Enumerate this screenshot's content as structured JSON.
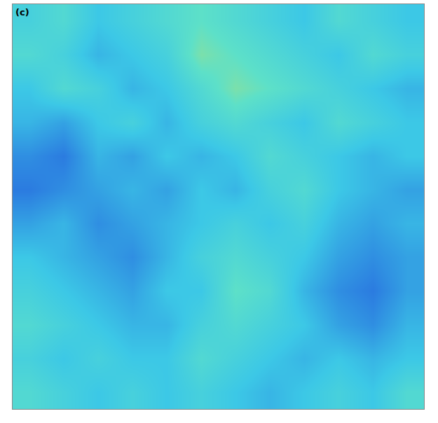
{
  "chart_data": {
    "type": "heatmap",
    "panel": "(c)",
    "tick_labels": false,
    "grid": false,
    "zlim": [
      0,
      1
    ],
    "cells": [
      [
        0.55,
        0.6,
        0.5,
        0.55,
        0.6,
        0.65,
        0.6,
        0.55,
        0.5,
        0.6,
        0.55,
        0.5
      ],
      [
        0.6,
        0.55,
        0.45,
        0.5,
        0.55,
        0.7,
        0.65,
        0.6,
        0.55,
        0.5,
        0.6,
        0.55
      ],
      [
        0.5,
        0.6,
        0.55,
        0.45,
        0.5,
        0.6,
        0.7,
        0.65,
        0.6,
        0.55,
        0.5,
        0.45
      ],
      [
        0.45,
        0.4,
        0.5,
        0.55,
        0.45,
        0.55,
        0.6,
        0.55,
        0.5,
        0.6,
        0.55,
        0.5
      ],
      [
        0.35,
        0.3,
        0.45,
        0.4,
        0.5,
        0.45,
        0.5,
        0.6,
        0.55,
        0.5,
        0.45,
        0.5
      ],
      [
        0.3,
        0.35,
        0.4,
        0.45,
        0.4,
        0.5,
        0.45,
        0.55,
        0.6,
        0.5,
        0.45,
        0.4
      ],
      [
        0.4,
        0.45,
        0.35,
        0.4,
        0.45,
        0.5,
        0.55,
        0.5,
        0.55,
        0.45,
        0.4,
        0.45
      ],
      [
        0.5,
        0.45,
        0.4,
        0.35,
        0.45,
        0.55,
        0.6,
        0.55,
        0.5,
        0.4,
        0.35,
        0.4
      ],
      [
        0.55,
        0.5,
        0.45,
        0.4,
        0.5,
        0.5,
        0.65,
        0.6,
        0.45,
        0.35,
        0.3,
        0.4
      ],
      [
        0.6,
        0.55,
        0.5,
        0.45,
        0.45,
        0.55,
        0.6,
        0.55,
        0.5,
        0.4,
        0.35,
        0.45
      ],
      [
        0.55,
        0.5,
        0.55,
        0.5,
        0.5,
        0.6,
        0.55,
        0.5,
        0.45,
        0.5,
        0.45,
        0.5
      ],
      [
        0.6,
        0.55,
        0.5,
        0.55,
        0.5,
        0.55,
        0.5,
        0.45,
        0.5,
        0.55,
        0.5,
        0.6
      ]
    ]
  }
}
